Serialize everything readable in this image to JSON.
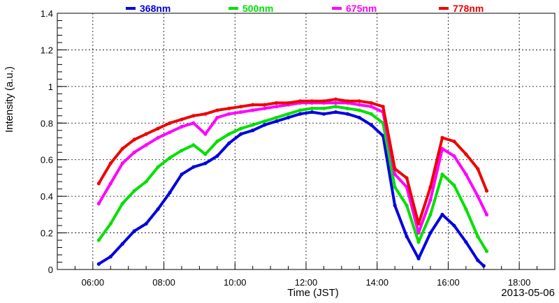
{
  "chart_data": {
    "type": "scatter",
    "title": "",
    "xlabel": "Time (JST)",
    "ylabel": "Intensity (a.u.)",
    "date": "2013-05-06",
    "xlim": [
      "05:00",
      "19:00"
    ],
    "ylim": [
      0,
      1.4
    ],
    "x_ticks": [
      "06:00",
      "08:00",
      "10:00",
      "12:00",
      "14:00",
      "16:00",
      "18:00"
    ],
    "y_ticks": [
      "0",
      "0.2",
      "0.4",
      "0.6",
      "0.8",
      "1",
      "1.2",
      "1.4"
    ],
    "grid": true,
    "legend_position": "top",
    "series": [
      {
        "name": "368nm",
        "color": "#0000e0",
        "points": [
          [
            "06:10",
            0.03
          ],
          [
            "06:30",
            0.07
          ],
          [
            "06:50",
            0.14
          ],
          [
            "07:10",
            0.21
          ],
          [
            "07:30",
            0.25
          ],
          [
            "07:50",
            0.33
          ],
          [
            "08:10",
            0.42
          ],
          [
            "08:30",
            0.52
          ],
          [
            "08:50",
            0.56
          ],
          [
            "09:10",
            0.58
          ],
          [
            "09:30",
            0.62
          ],
          [
            "09:50",
            0.69
          ],
          [
            "10:10",
            0.74
          ],
          [
            "10:30",
            0.76
          ],
          [
            "10:50",
            0.79
          ],
          [
            "11:10",
            0.81
          ],
          [
            "11:30",
            0.83
          ],
          [
            "11:50",
            0.85
          ],
          [
            "12:10",
            0.86
          ],
          [
            "12:30",
            0.85
          ],
          [
            "12:50",
            0.86
          ],
          [
            "13:10",
            0.85
          ],
          [
            "13:30",
            0.83
          ],
          [
            "13:50",
            0.79
          ],
          [
            "14:10",
            0.73
          ],
          [
            "14:30",
            0.35
          ],
          [
            "14:50",
            0.18
          ],
          [
            "15:10",
            0.06
          ],
          [
            "15:30",
            0.2
          ],
          [
            "15:50",
            0.3
          ],
          [
            "16:10",
            0.24
          ],
          [
            "16:30",
            0.15
          ],
          [
            "16:50",
            0.05
          ],
          [
            "17:00",
            0.02
          ]
        ]
      },
      {
        "name": "500nm",
        "color": "#00e000",
        "points": [
          [
            "06:10",
            0.16
          ],
          [
            "06:30",
            0.25
          ],
          [
            "06:50",
            0.36
          ],
          [
            "07:10",
            0.43
          ],
          [
            "07:30",
            0.48
          ],
          [
            "07:50",
            0.56
          ],
          [
            "08:10",
            0.61
          ],
          [
            "08:30",
            0.65
          ],
          [
            "08:50",
            0.68
          ],
          [
            "09:10",
            0.63
          ],
          [
            "09:30",
            0.7
          ],
          [
            "09:50",
            0.74
          ],
          [
            "10:10",
            0.77
          ],
          [
            "10:30",
            0.79
          ],
          [
            "10:50",
            0.81
          ],
          [
            "11:10",
            0.83
          ],
          [
            "11:30",
            0.85
          ],
          [
            "11:50",
            0.87
          ],
          [
            "12:10",
            0.88
          ],
          [
            "12:30",
            0.88
          ],
          [
            "12:50",
            0.89
          ],
          [
            "13:10",
            0.88
          ],
          [
            "13:30",
            0.87
          ],
          [
            "13:50",
            0.85
          ],
          [
            "14:10",
            0.8
          ],
          [
            "14:30",
            0.45
          ],
          [
            "14:50",
            0.35
          ],
          [
            "15:10",
            0.15
          ],
          [
            "15:30",
            0.3
          ],
          [
            "15:50",
            0.52
          ],
          [
            "16:10",
            0.46
          ],
          [
            "16:30",
            0.33
          ],
          [
            "16:50",
            0.18
          ],
          [
            "17:05",
            0.1
          ]
        ]
      },
      {
        "name": "675nm",
        "color": "#ff00ff",
        "points": [
          [
            "06:10",
            0.36
          ],
          [
            "06:30",
            0.47
          ],
          [
            "06:50",
            0.58
          ],
          [
            "07:10",
            0.64
          ],
          [
            "07:30",
            0.68
          ],
          [
            "07:50",
            0.72
          ],
          [
            "08:10",
            0.75
          ],
          [
            "08:30",
            0.78
          ],
          [
            "08:50",
            0.8
          ],
          [
            "09:10",
            0.74
          ],
          [
            "09:30",
            0.83
          ],
          [
            "09:50",
            0.85
          ],
          [
            "10:10",
            0.86
          ],
          [
            "10:30",
            0.87
          ],
          [
            "10:50",
            0.88
          ],
          [
            "11:10",
            0.89
          ],
          [
            "11:30",
            0.9
          ],
          [
            "11:50",
            0.91
          ],
          [
            "12:10",
            0.91
          ],
          [
            "12:30",
            0.91
          ],
          [
            "12:50",
            0.91
          ],
          [
            "13:10",
            0.91
          ],
          [
            "13:30",
            0.9
          ],
          [
            "13:50",
            0.89
          ],
          [
            "14:10",
            0.86
          ],
          [
            "14:30",
            0.52
          ],
          [
            "14:50",
            0.45
          ],
          [
            "15:10",
            0.2
          ],
          [
            "15:30",
            0.38
          ],
          [
            "15:50",
            0.66
          ],
          [
            "16:10",
            0.62
          ],
          [
            "16:30",
            0.52
          ],
          [
            "16:50",
            0.4
          ],
          [
            "17:05",
            0.3
          ]
        ]
      },
      {
        "name": "778nm",
        "color": "#ee0000",
        "points": [
          [
            "06:10",
            0.47
          ],
          [
            "06:30",
            0.58
          ],
          [
            "06:50",
            0.66
          ],
          [
            "07:10",
            0.71
          ],
          [
            "07:30",
            0.74
          ],
          [
            "07:50",
            0.77
          ],
          [
            "08:10",
            0.8
          ],
          [
            "08:30",
            0.82
          ],
          [
            "08:50",
            0.84
          ],
          [
            "09:10",
            0.85
          ],
          [
            "09:30",
            0.87
          ],
          [
            "09:50",
            0.88
          ],
          [
            "10:10",
            0.89
          ],
          [
            "10:30",
            0.9
          ],
          [
            "10:50",
            0.9
          ],
          [
            "11:10",
            0.91
          ],
          [
            "11:30",
            0.91
          ],
          [
            "11:50",
            0.92
          ],
          [
            "12:10",
            0.92
          ],
          [
            "12:30",
            0.92
          ],
          [
            "12:50",
            0.93
          ],
          [
            "13:10",
            0.92
          ],
          [
            "13:30",
            0.92
          ],
          [
            "13:50",
            0.91
          ],
          [
            "14:10",
            0.89
          ],
          [
            "14:30",
            0.55
          ],
          [
            "14:50",
            0.5
          ],
          [
            "15:10",
            0.25
          ],
          [
            "15:30",
            0.45
          ],
          [
            "15:50",
            0.72
          ],
          [
            "16:10",
            0.7
          ],
          [
            "16:30",
            0.63
          ],
          [
            "16:50",
            0.55
          ],
          [
            "17:05",
            0.43
          ]
        ]
      }
    ]
  }
}
